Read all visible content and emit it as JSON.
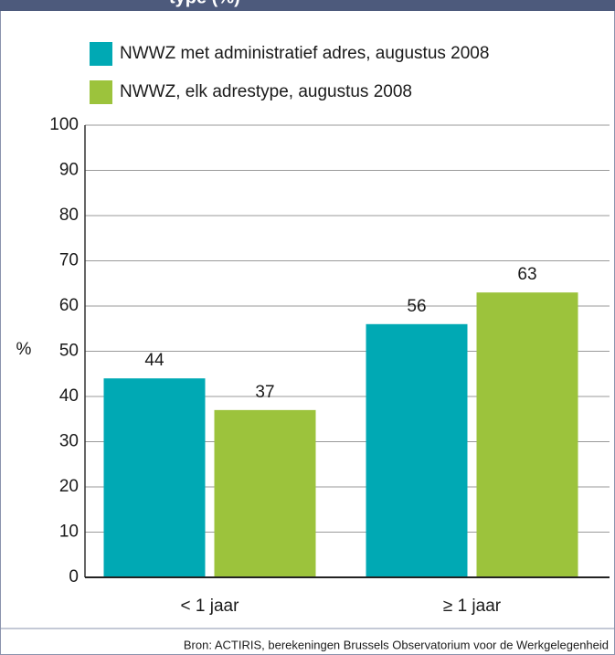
{
  "chart_data": {
    "type": "bar",
    "title": "type (%)",
    "ylabel": "%",
    "categories": [
      "< 1 jaar",
      "≥ 1 jaar"
    ],
    "series": [
      {
        "name": "NWWZ met administratief adres, augustus 2008",
        "color": "#00a9b4",
        "values": [
          44,
          56
        ]
      },
      {
        "name": "NWWZ, elk adrestype, augustus 2008",
        "color": "#9cc33c",
        "values": [
          37,
          63
        ]
      }
    ],
    "ylim": [
      0,
      100
    ],
    "yticks": [
      0,
      10,
      20,
      30,
      40,
      50,
      60,
      70,
      80,
      90,
      100
    ],
    "grid": true,
    "source": "Bron: ACTIRIS, berekeningen Brussels Observatorium voor de Werkgelegenheid"
  }
}
